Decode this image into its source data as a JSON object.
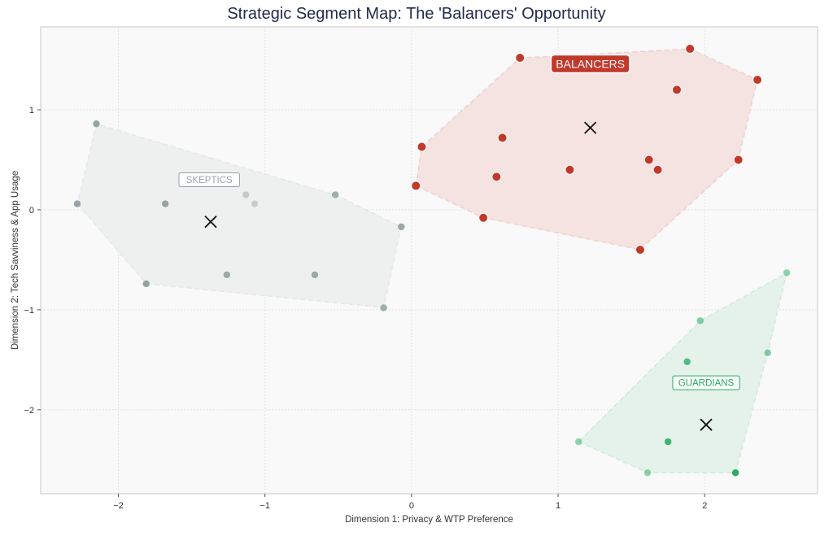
{
  "chart_data": {
    "type": "scatter",
    "title": "Strategic Segment Map: The 'Balancers' Opportunity",
    "xlabel": "Dimension 1: Privacy & WTP Preference",
    "ylabel": "Dimension 2: Tech Savviness & App Usage",
    "xlim": [
      -2.53,
      2.77
    ],
    "ylim": [
      -2.84,
      1.83
    ],
    "xticks": [
      -2,
      -1,
      0,
      1,
      2
    ],
    "yticks": [
      -2,
      -1,
      0,
      1
    ],
    "xtick_labels": [
      "−2",
      "−1",
      "0",
      "1",
      "2"
    ],
    "ytick_labels": [
      "−2",
      "−1",
      "0",
      "1"
    ],
    "grid": true,
    "series": [
      {
        "name": "BALANCERS",
        "color": "#c0392b",
        "fill": "#f5e3e2",
        "label_style": "filled",
        "label_pos": [
          1.22,
          1.46
        ],
        "centroid": [
          1.22,
          0.82
        ],
        "points": [
          [
            0.74,
            1.52,
            1
          ],
          [
            1.9,
            1.61,
            1
          ],
          [
            2.36,
            1.3,
            1
          ],
          [
            1.81,
            1.2,
            1
          ],
          [
            0.07,
            0.63,
            1
          ],
          [
            0.62,
            0.72,
            1
          ],
          [
            0.03,
            0.24,
            1
          ],
          [
            0.58,
            0.33,
            1
          ],
          [
            1.08,
            0.4,
            1
          ],
          [
            1.62,
            0.5,
            1
          ],
          [
            1.68,
            0.4,
            1
          ],
          [
            2.23,
            0.5,
            1
          ],
          [
            0.49,
            -0.08,
            1
          ],
          [
            1.56,
            -0.4,
            1
          ]
        ]
      },
      {
        "name": "SKEPTICS",
        "color": "#95a5a6",
        "fill": "#eeefef",
        "label_style": "outline",
        "label_pos": [
          -1.38,
          0.3
        ],
        "centroid": [
          -1.37,
          -0.12
        ],
        "points": [
          [
            -2.15,
            0.86,
            1
          ],
          [
            -2.28,
            0.06,
            1
          ],
          [
            -1.68,
            0.06,
            1
          ],
          [
            -1.13,
            0.15,
            0.5
          ],
          [
            -1.07,
            0.06,
            0.45
          ],
          [
            -0.52,
            0.15,
            0.9
          ],
          [
            -0.07,
            -0.17,
            0.95
          ],
          [
            -1.81,
            -0.74,
            1
          ],
          [
            -1.26,
            -0.65,
            0.95
          ],
          [
            -0.66,
            -0.65,
            0.95
          ],
          [
            -0.19,
            -0.98,
            0.9
          ]
        ]
      },
      {
        "name": "GUARDIANS",
        "color": "#27ae60",
        "fill": "#e4f2e9",
        "label_style": "outline",
        "label_pos": [
          2.01,
          -1.73
        ],
        "centroid": [
          2.01,
          -2.15
        ],
        "points": [
          [
            2.56,
            -0.63,
            0.5
          ],
          [
            1.97,
            -1.11,
            0.55
          ],
          [
            2.43,
            -1.43,
            0.55
          ],
          [
            1.88,
            -1.52,
            0.8
          ],
          [
            1.14,
            -2.32,
            0.5
          ],
          [
            1.75,
            -2.32,
            0.9
          ],
          [
            1.61,
            -2.63,
            0.5
          ],
          [
            2.21,
            -2.63,
            1
          ]
        ]
      }
    ]
  }
}
